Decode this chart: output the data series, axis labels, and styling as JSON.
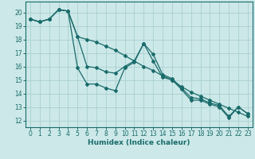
{
  "xlabel": "Humidex (Indice chaleur)",
  "bg_color": "#cce8e8",
  "grid_color": "#aacfcf",
  "line_color": "#1a6b6b",
  "xlim": [
    -0.5,
    23.5
  ],
  "ylim": [
    11.5,
    20.8
  ],
  "xticks": [
    0,
    1,
    2,
    3,
    4,
    5,
    6,
    7,
    8,
    9,
    10,
    11,
    12,
    13,
    14,
    15,
    16,
    17,
    18,
    19,
    20,
    21,
    22,
    23
  ],
  "yticks": [
    12,
    13,
    14,
    15,
    16,
    17,
    18,
    19,
    20
  ],
  "series": [
    [
      19.5,
      19.3,
      19.5,
      20.2,
      20.1,
      15.9,
      14.7,
      14.7,
      14.4,
      14.2,
      15.9,
      16.3,
      17.7,
      16.4,
      15.2,
      15.0,
      14.3,
      13.5,
      13.5,
      13.2,
      13.0,
      12.2,
      13.0,
      12.5
    ],
    [
      19.5,
      19.3,
      19.5,
      20.2,
      20.1,
      18.2,
      16.0,
      15.9,
      15.6,
      15.5,
      16.0,
      16.4,
      17.7,
      16.9,
      15.4,
      15.1,
      14.4,
      13.7,
      13.6,
      13.3,
      13.1,
      12.3,
      13.0,
      12.5
    ],
    [
      19.5,
      19.3,
      19.5,
      20.2,
      20.1,
      18.2,
      18.0,
      17.8,
      17.5,
      17.2,
      16.8,
      16.4,
      16.0,
      15.7,
      15.3,
      15.0,
      14.5,
      14.1,
      13.8,
      13.5,
      13.2,
      12.9,
      12.6,
      12.3
    ]
  ]
}
